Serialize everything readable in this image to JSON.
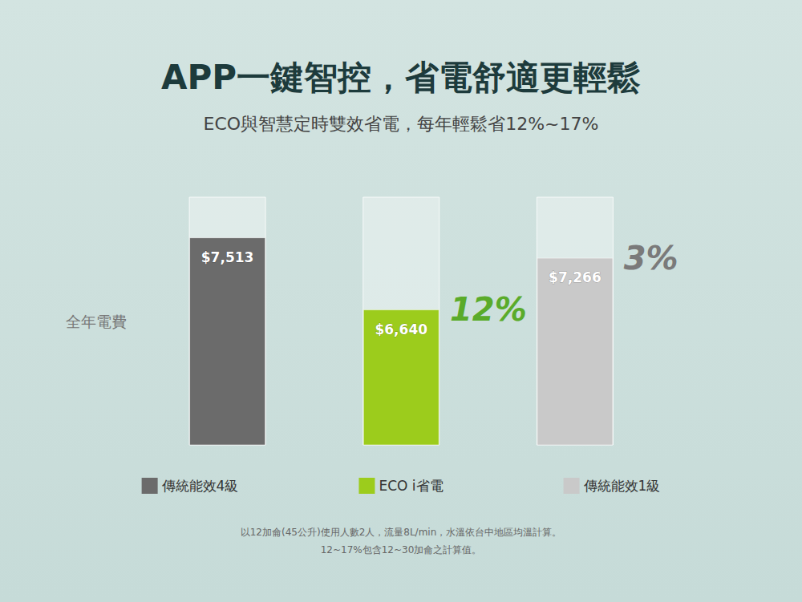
{
  "chart_data": {
    "type": "bar",
    "title": "APP一鍵智控，省電舒適更輕鬆",
    "subtitle": "ECO與智慧定時雙效省電，每年輕鬆省12%~17%",
    "ylabel": "全年電費",
    "categories": [
      "傳統能效4級",
      "ECO i省電",
      "傳統能效1級"
    ],
    "values": [
      7513,
      6640,
      7266
    ],
    "value_labels": [
      "$7,513",
      "$6,640",
      "$7,266"
    ],
    "colors": [
      "#6b6b6b",
      "#9ccc1c",
      "#c9c9c9"
    ],
    "data_labels": true,
    "ylim": [
      5000,
      8000
    ],
    "yticks": [
      5000,
      6000,
      7000,
      8000
    ],
    "tick_labels": false,
    "grid": false,
    "legend": "bottom",
    "annotations": [
      {
        "category": "ECO i省電",
        "text": "12%",
        "color": "#5aab2a"
      },
      {
        "category": "傳統能效1級",
        "text": "3%",
        "color": "#7a7a7a"
      }
    ],
    "footnotes": [
      "以12加侖(45公升)使用人數2人，流量8L/min，水溫依台中地區均溫計算。",
      "12~17%包含12~30加侖之計算值。"
    ]
  }
}
